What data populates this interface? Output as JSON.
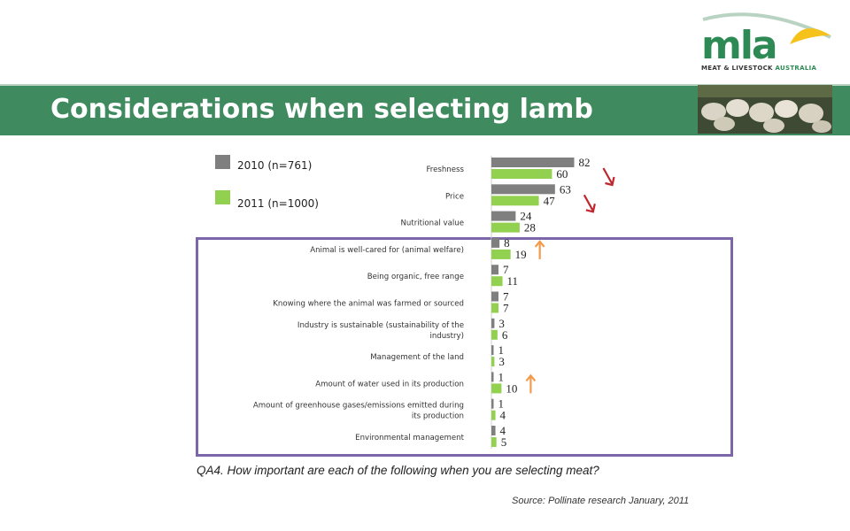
{
  "brand": {
    "logo_text": "mla",
    "logo_sub_a": "MEAT & LIVESTOCK ",
    "logo_sub_b": "AUSTRALIA",
    "green": "#3f8a5e",
    "yellow": "#f5c21c"
  },
  "header": {
    "title": "Considerations when selecting lamb"
  },
  "question": "QA4. How important are each of the following when you are selecting meat?",
  "source": "Source: Pollinate research January, 2011",
  "chart_data": {
    "type": "bar",
    "orientation": "horizontal",
    "categories": [
      "Freshness",
      "Price",
      "Nutritional value",
      "Animal is well-cared for (animal welfare)",
      "Being organic, free range",
      "Knowing where the animal was farmed or sourced",
      "Industry is sustainable (sustainability of the industry)",
      "Management of the land",
      "Amount of water used in its production",
      "Amount of greenhouse gases/emissions emitted during its production",
      "Environmental management"
    ],
    "series": [
      {
        "name": "2010 (n=761)",
        "color": "#7f7f7f",
        "values": [
          82,
          63,
          24,
          8,
          7,
          7,
          3,
          1,
          1,
          1,
          4
        ]
      },
      {
        "name": "2011 (n=1000)",
        "color": "#92d050",
        "values": [
          60,
          47,
          28,
          19,
          11,
          7,
          6,
          3,
          10,
          4,
          5
        ]
      }
    ],
    "changes": [
      {
        "category": "Freshness",
        "direction": "down",
        "color": "#c0262d"
      },
      {
        "category": "Price",
        "direction": "down",
        "color": "#c0262d"
      },
      {
        "category": "Animal is well-cared for (animal welfare)",
        "direction": "up",
        "color": "#f39a4b"
      },
      {
        "category": "Amount of water used in its production",
        "direction": "up",
        "color": "#f39a4b"
      }
    ],
    "xlim": [
      0,
      100
    ],
    "legend": "top-left",
    "grid": false
  }
}
